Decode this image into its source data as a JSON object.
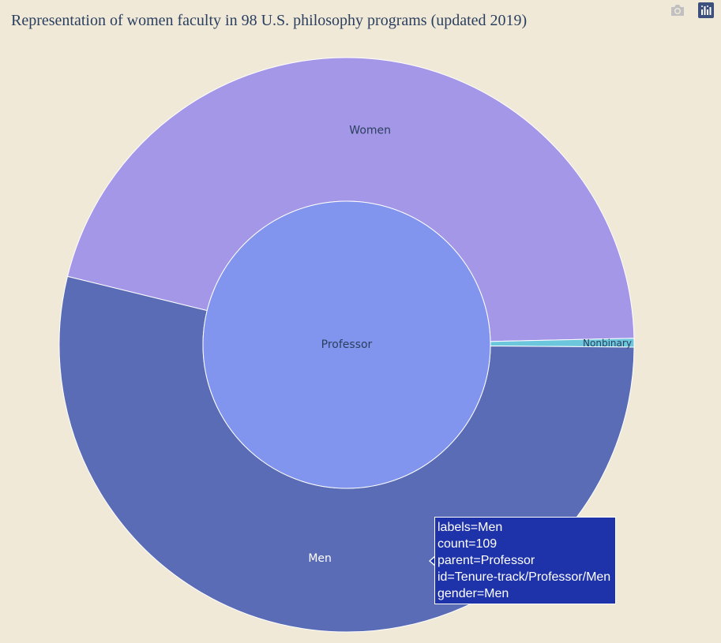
{
  "title": "Representation of women faculty in 98 U.S. philosophy programs (updated 2019)",
  "modebar": {
    "camera_icon": "camera-icon",
    "plotly_icon": "plotly-logo-icon"
  },
  "chart_data": {
    "type": "sunburst",
    "root": {
      "label": "Professor",
      "color": "#8195ee"
    },
    "children": [
      {
        "label": "Women",
        "count": 93,
        "color": "#a597e8",
        "label_color": "#2a3f5f"
      },
      {
        "label": "Nonbinary",
        "count": 1,
        "color": "#6cc7dc",
        "label_color": "#2a3f5f"
      },
      {
        "label": "Men",
        "count": 109,
        "color": "#5a6cb6",
        "label_color": "#ffffff"
      }
    ]
  },
  "tooltip": {
    "lines": [
      "labels=Men",
      "count=109",
      "parent=Professor",
      "id=Tenure-track/Professor/Men",
      "gender=Men"
    ]
  }
}
